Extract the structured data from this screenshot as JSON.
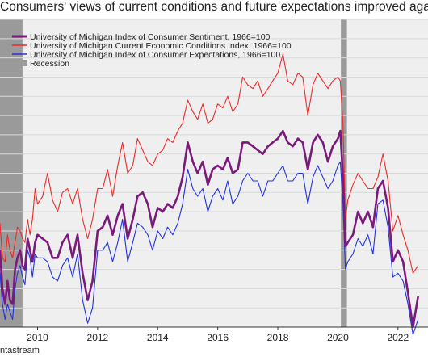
{
  "chart_data": {
    "type": "line",
    "title": "Consumers' views of current conditions and future expectations improved again",
    "xlabel": "",
    "ylabel": "",
    "xlim": [
      2008.75,
      2023.0
    ],
    "ylim": [
      50,
      130
    ],
    "grid": true,
    "legend_position": "top-left",
    "x_ticks": [
      2010,
      2012,
      2014,
      2016,
      2018,
      2020,
      2022
    ],
    "x_tick_labels": [
      "2010",
      "2012",
      "2014",
      "2016",
      "2018",
      "2020",
      "2022"
    ],
    "recessions": [
      [
        2008.75,
        2009.5
      ],
      [
        2020.1,
        2020.3
      ]
    ],
    "source": "ntastream",
    "colors": {
      "sentiment": "#7a1a7a",
      "current": "#ee2b2b",
      "expectations": "#2233dd",
      "recession": "#9a9a9a",
      "grid": "#d9d9d9",
      "background": "#efefef"
    },
    "series": [
      {
        "name": "University of Michigan Index of Consumer Sentiment, 1966=100",
        "key": "sentiment",
        "x": [
          2008.75,
          2008.83,
          2008.92,
          2009.0,
          2009.08,
          2009.17,
          2009.25,
          2009.33,
          2009.42,
          2009.5,
          2009.58,
          2009.67,
          2009.75,
          2009.83,
          2009.92,
          2010.0,
          2010.17,
          2010.33,
          2010.5,
          2010.67,
          2010.83,
          2011.0,
          2011.17,
          2011.33,
          2011.5,
          2011.67,
          2011.83,
          2012.0,
          2012.17,
          2012.33,
          2012.5,
          2012.67,
          2012.83,
          2013.0,
          2013.17,
          2013.33,
          2013.5,
          2013.67,
          2013.83,
          2014.0,
          2014.17,
          2014.33,
          2014.5,
          2014.67,
          2014.83,
          2015.0,
          2015.17,
          2015.33,
          2015.5,
          2015.67,
          2015.83,
          2016.0,
          2016.17,
          2016.33,
          2016.5,
          2016.67,
          2016.83,
          2017.0,
          2017.17,
          2017.33,
          2017.5,
          2017.67,
          2017.83,
          2018.0,
          2018.17,
          2018.33,
          2018.5,
          2018.67,
          2018.83,
          2019.0,
          2019.17,
          2019.33,
          2019.5,
          2019.67,
          2019.83,
          2020.0,
          2020.08,
          2020.17,
          2020.25,
          2020.33,
          2020.5,
          2020.67,
          2020.83,
          2021.0,
          2021.17,
          2021.33,
          2021.5,
          2021.67,
          2021.83,
          2022.0,
          2022.17,
          2022.33,
          2022.5,
          2022.67
        ],
        "values": [
          70,
          60,
          56,
          62,
          57,
          56,
          65,
          68,
          70,
          66,
          65,
          73,
          70,
          67,
          72,
          74,
          73,
          72,
          68,
          68,
          72,
          74,
          68,
          74,
          64,
          57,
          62,
          75,
          76,
          79,
          74,
          79,
          82,
          73,
          78,
          84,
          85,
          82,
          76,
          81,
          80,
          82,
          81,
          84,
          89,
          98,
          93,
          90,
          93,
          87,
          91,
          92,
          91,
          94,
          90,
          91,
          98,
          98,
          97,
          96,
          95,
          97,
          98,
          99,
          101,
          98,
          97,
          99,
          98,
          91,
          98,
          100,
          98,
          93,
          97,
          99,
          101,
          89,
          71,
          72,
          74,
          80,
          77,
          80,
          76,
          86,
          88,
          81,
          67,
          70,
          67,
          59,
          50,
          58
        ]
      },
      {
        "name": "University of Michigan Current Economic Conditions Index, 1966=100",
        "key": "current",
        "x": [
          2008.75,
          2008.83,
          2008.92,
          2009.0,
          2009.08,
          2009.17,
          2009.25,
          2009.33,
          2009.42,
          2009.5,
          2009.58,
          2009.67,
          2009.75,
          2009.83,
          2009.92,
          2010.0,
          2010.17,
          2010.33,
          2010.5,
          2010.67,
          2010.83,
          2011.0,
          2011.17,
          2011.33,
          2011.5,
          2011.67,
          2011.83,
          2012.0,
          2012.17,
          2012.33,
          2012.5,
          2012.67,
          2012.83,
          2013.0,
          2013.17,
          2013.33,
          2013.5,
          2013.67,
          2013.83,
          2014.0,
          2014.17,
          2014.33,
          2014.5,
          2014.67,
          2014.83,
          2015.0,
          2015.17,
          2015.33,
          2015.5,
          2015.67,
          2015.83,
          2016.0,
          2016.17,
          2016.33,
          2016.5,
          2016.67,
          2016.83,
          2017.0,
          2017.17,
          2017.33,
          2017.5,
          2017.67,
          2017.83,
          2018.0,
          2018.17,
          2018.33,
          2018.5,
          2018.67,
          2018.83,
          2019.0,
          2019.17,
          2019.33,
          2019.5,
          2019.67,
          2019.83,
          2020.0,
          2020.08,
          2020.17,
          2020.25,
          2020.33,
          2020.5,
          2020.67,
          2020.83,
          2021.0,
          2021.17,
          2021.33,
          2021.5,
          2021.67,
          2021.83,
          2022.0,
          2022.17,
          2022.33,
          2022.5,
          2022.67
        ],
        "values": [
          77,
          68,
          67,
          74,
          70,
          68,
          72,
          76,
          75,
          73,
          72,
          78,
          74,
          78,
          86,
          82,
          84,
          90,
          83,
          80,
          85,
          86,
          82,
          86,
          78,
          73,
          78,
          86,
          86,
          91,
          84,
          92,
          98,
          90,
          92,
          99,
          96,
          93,
          92,
          95,
          96,
          99,
          98,
          101,
          103,
          109,
          106,
          104,
          108,
          103,
          104,
          108,
          107,
          110,
          106,
          108,
          115,
          113,
          112,
          114,
          110,
          112,
          114,
          116,
          121,
          114,
          113,
          116,
          115,
          105,
          113,
          116,
          114,
          112,
          114,
          115,
          114,
          103,
          78,
          83,
          87,
          90,
          88,
          86,
          86,
          89,
          95,
          88,
          75,
          79,
          74,
          70,
          64,
          66
        ]
      },
      {
        "name": "University of Michigan Index of Consumer Expectations, 1966=100",
        "key": "expectations",
        "x": [
          2008.75,
          2008.83,
          2008.92,
          2009.0,
          2009.08,
          2009.17,
          2009.25,
          2009.33,
          2009.42,
          2009.5,
          2009.58,
          2009.67,
          2009.75,
          2009.83,
          2009.92,
          2010.0,
          2010.17,
          2010.33,
          2010.5,
          2010.67,
          2010.83,
          2011.0,
          2011.17,
          2011.33,
          2011.5,
          2011.67,
          2011.83,
          2012.0,
          2012.17,
          2012.33,
          2012.5,
          2012.67,
          2012.83,
          2013.0,
          2013.17,
          2013.33,
          2013.5,
          2013.67,
          2013.83,
          2014.0,
          2014.17,
          2014.33,
          2014.5,
          2014.67,
          2014.83,
          2015.0,
          2015.17,
          2015.33,
          2015.5,
          2015.67,
          2015.83,
          2016.0,
          2016.17,
          2016.33,
          2016.5,
          2016.67,
          2016.83,
          2017.0,
          2017.17,
          2017.33,
          2017.5,
          2017.67,
          2017.83,
          2018.0,
          2018.17,
          2018.33,
          2018.5,
          2018.67,
          2018.83,
          2019.0,
          2019.17,
          2019.33,
          2019.5,
          2019.67,
          2019.83,
          2020.0,
          2020.08,
          2020.17,
          2020.25,
          2020.33,
          2020.5,
          2020.67,
          2020.83,
          2021.0,
          2021.17,
          2021.33,
          2021.5,
          2021.67,
          2021.83,
          2022.0,
          2022.17,
          2022.33,
          2022.5,
          2022.67
        ],
        "values": [
          64,
          56,
          52,
          56,
          54,
          52,
          60,
          64,
          66,
          63,
          61,
          70,
          68,
          63,
          69,
          68,
          68,
          67,
          63,
          62,
          66,
          68,
          63,
          69,
          57,
          51,
          55,
          70,
          70,
          72,
          67,
          72,
          78,
          67,
          72,
          77,
          76,
          74,
          70,
          75,
          73,
          76,
          74,
          77,
          82,
          91,
          86,
          84,
          86,
          80,
          84,
          86,
          83,
          88,
          82,
          84,
          88,
          90,
          88,
          88,
          84,
          88,
          88,
          90,
          92,
          88,
          88,
          90,
          90,
          82,
          89,
          92,
          89,
          86,
          88,
          92,
          93,
          82,
          65,
          67,
          69,
          73,
          71,
          74,
          69,
          82,
          83,
          76,
          63,
          64,
          62,
          56,
          48,
          52
        ]
      }
    ],
    "recession_label": "Recession"
  }
}
